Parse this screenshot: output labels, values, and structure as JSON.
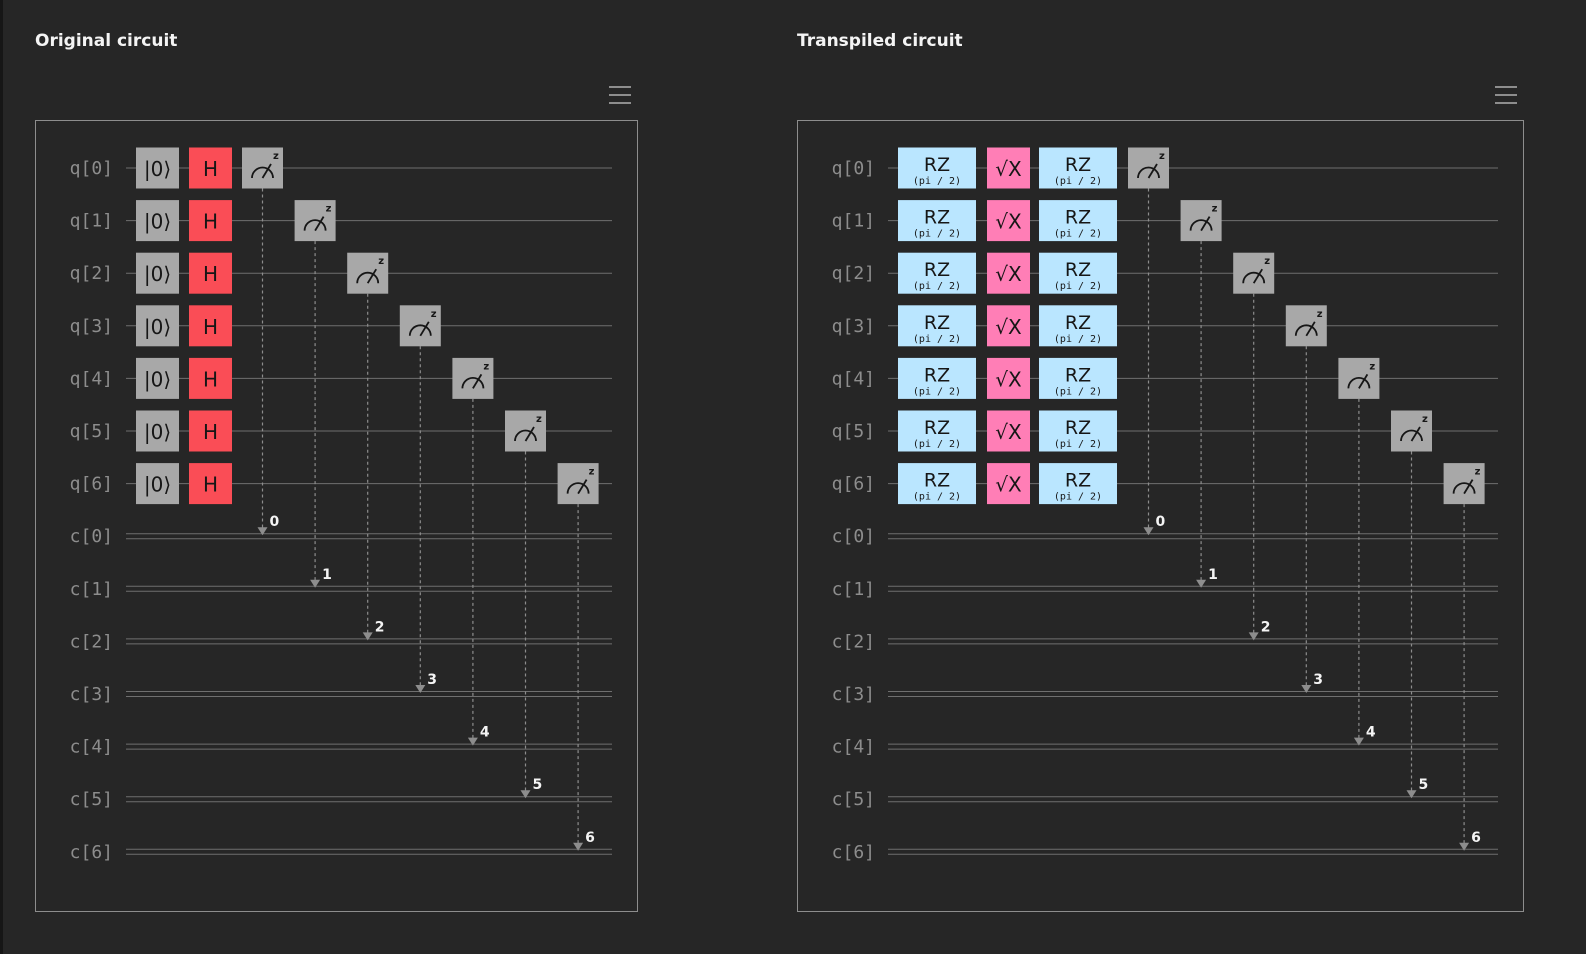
{
  "panels": [
    {
      "title": "Original circuit",
      "qubit_labels": [
        "q[0]",
        "q[1]",
        "q[2]",
        "q[3]",
        "q[4]",
        "q[5]",
        "q[6]"
      ],
      "clbit_labels": [
        "c[0]",
        "c[1]",
        "c[2]",
        "c[3]",
        "c[4]",
        "c[5]",
        "c[6]"
      ],
      "gates": [
        {
          "type": "reset",
          "label": "|0⟩"
        },
        {
          "type": "h",
          "label": "H"
        }
      ],
      "measure_label": "z",
      "measure_bits": [
        "0",
        "1",
        "2",
        "3",
        "4",
        "5",
        "6"
      ]
    },
    {
      "title": "Transpiled circuit",
      "qubit_labels": [
        "q[0]",
        "q[1]",
        "q[2]",
        "q[3]",
        "q[4]",
        "q[5]",
        "q[6]"
      ],
      "clbit_labels": [
        "c[0]",
        "c[1]",
        "c[2]",
        "c[3]",
        "c[4]",
        "c[5]",
        "c[6]"
      ],
      "gates": [
        {
          "type": "rz",
          "label": "RZ",
          "param": "(pi / 2)"
        },
        {
          "type": "sx",
          "label": "√X"
        },
        {
          "type": "rz",
          "label": "RZ",
          "param": "(pi / 2)"
        }
      ],
      "measure_label": "z",
      "measure_bits": [
        "0",
        "1",
        "2",
        "3",
        "4",
        "5",
        "6"
      ]
    }
  ],
  "colors": {
    "background": "#262626",
    "wire": "#6f6f6f",
    "label": "#8d8d8d",
    "reset_fill": "#a8a8a8",
    "h_fill": "#fa4d56",
    "h_text": "#161616",
    "rz_fill": "#bae6ff",
    "sx_fill": "#ff7eb6",
    "measure_fill": "#a8a8a8",
    "bit_text": "#f4f4f4"
  }
}
